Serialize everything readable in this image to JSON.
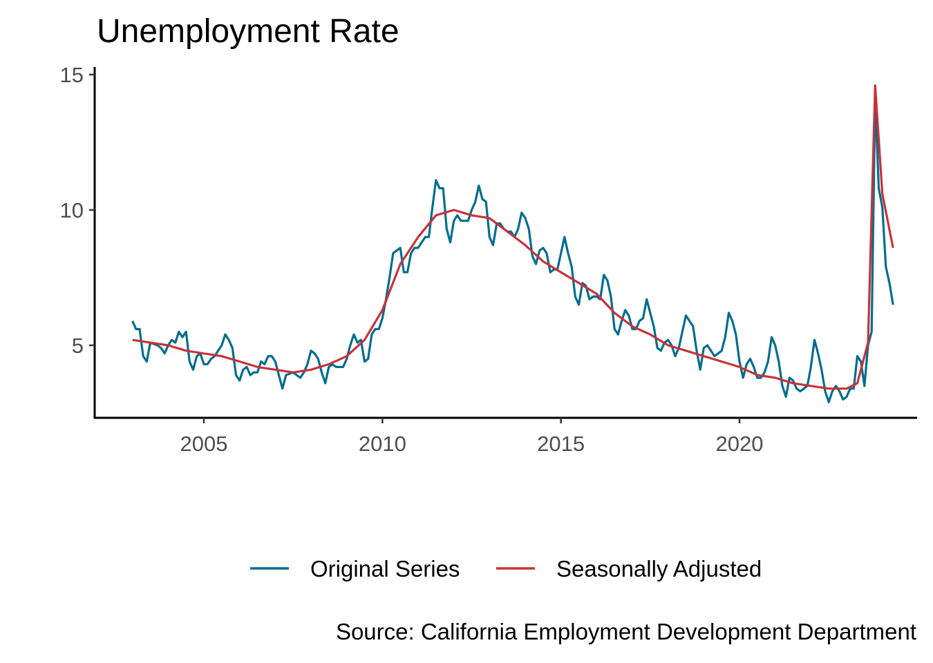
{
  "chart_data": {
    "type": "line",
    "title": "Unemployment Rate",
    "caption": "Source: California Employment Development Department",
    "xlabel": "",
    "ylabel": "",
    "xlim": [
      2002.0,
      2024.3
    ],
    "ylim": [
      2.5,
      15.2
    ],
    "x_ticks": [
      2005,
      2010,
      2015,
      2020
    ],
    "x_tick_labels": [
      "2005",
      "2010",
      "2015",
      "2020"
    ],
    "y_ticks": [
      5,
      10,
      15
    ],
    "y_tick_labels": [
      "5",
      "10",
      "15"
    ],
    "grid": false,
    "legend_position": "bottom",
    "series": [
      {
        "name": "Original Series",
        "color": "#006d8f",
        "points": [
          [
            2003.0,
            5.9
          ],
          [
            2003.1,
            5.6
          ],
          [
            2003.2,
            5.6
          ],
          [
            2003.3,
            4.6
          ],
          [
            2003.4,
            4.4
          ],
          [
            2003.5,
            5.1
          ],
          [
            2003.7,
            5.0
          ],
          [
            2003.8,
            4.9
          ],
          [
            2003.9,
            4.7
          ],
          [
            2004.0,
            5.0
          ],
          [
            2004.1,
            5.2
          ],
          [
            2004.2,
            5.1
          ],
          [
            2004.3,
            5.5
          ],
          [
            2004.4,
            5.3
          ],
          [
            2004.5,
            5.5
          ],
          [
            2004.6,
            4.4
          ],
          [
            2004.7,
            4.1
          ],
          [
            2004.8,
            4.6
          ],
          [
            2004.9,
            4.7
          ],
          [
            2005.0,
            4.3
          ],
          [
            2005.1,
            4.3
          ],
          [
            2005.2,
            4.5
          ],
          [
            2005.3,
            4.6
          ],
          [
            2005.5,
            5.0
          ],
          [
            2005.6,
            5.4
          ],
          [
            2005.7,
            5.2
          ],
          [
            2005.8,
            4.9
          ],
          [
            2005.9,
            3.9
          ],
          [
            2006.0,
            3.7
          ],
          [
            2006.1,
            4.1
          ],
          [
            2006.2,
            4.2
          ],
          [
            2006.3,
            3.9
          ],
          [
            2006.4,
            4.0
          ],
          [
            2006.5,
            4.0
          ],
          [
            2006.6,
            4.4
          ],
          [
            2006.7,
            4.3
          ],
          [
            2006.8,
            4.6
          ],
          [
            2006.9,
            4.6
          ],
          [
            2007.0,
            4.4
          ],
          [
            2007.1,
            3.9
          ],
          [
            2007.2,
            3.4
          ],
          [
            2007.3,
            3.9
          ],
          [
            2007.5,
            4.0
          ],
          [
            2007.6,
            3.9
          ],
          [
            2007.7,
            3.8
          ],
          [
            2007.8,
            4.0
          ],
          [
            2007.9,
            4.3
          ],
          [
            2008.0,
            4.8
          ],
          [
            2008.1,
            4.7
          ],
          [
            2008.2,
            4.5
          ],
          [
            2008.3,
            4.0
          ],
          [
            2008.4,
            3.6
          ],
          [
            2008.5,
            4.2
          ],
          [
            2008.6,
            4.3
          ],
          [
            2008.7,
            4.2
          ],
          [
            2008.8,
            4.2
          ],
          [
            2008.9,
            4.2
          ],
          [
            2009.0,
            4.5
          ],
          [
            2009.1,
            5.0
          ],
          [
            2009.2,
            5.4
          ],
          [
            2009.3,
            5.1
          ],
          [
            2009.4,
            5.2
          ],
          [
            2009.5,
            4.4
          ],
          [
            2009.6,
            4.5
          ],
          [
            2009.7,
            5.4
          ],
          [
            2009.8,
            5.6
          ],
          [
            2009.9,
            5.6
          ],
          [
            2010.0,
            6.0
          ],
          [
            2010.1,
            6.7
          ],
          [
            2010.2,
            7.5
          ],
          [
            2010.3,
            8.4
          ],
          [
            2010.4,
            8.5
          ],
          [
            2010.5,
            8.6
          ],
          [
            2010.6,
            7.7
          ],
          [
            2010.7,
            7.7
          ],
          [
            2010.8,
            8.4
          ],
          [
            2010.9,
            8.6
          ],
          [
            2011.0,
            8.6
          ],
          [
            2011.1,
            8.8
          ],
          [
            2011.2,
            9.0
          ],
          [
            2011.3,
            9.0
          ],
          [
            2011.4,
            10.1
          ],
          [
            2011.5,
            11.1
          ],
          [
            2011.6,
            10.8
          ],
          [
            2011.7,
            10.8
          ],
          [
            2011.8,
            9.3
          ],
          [
            2011.9,
            8.8
          ],
          [
            2012.0,
            9.6
          ],
          [
            2012.1,
            9.8
          ],
          [
            2012.2,
            9.6
          ],
          [
            2012.3,
            9.6
          ],
          [
            2012.4,
            9.6
          ],
          [
            2012.5,
            10.0
          ],
          [
            2012.6,
            10.3
          ],
          [
            2012.7,
            10.9
          ],
          [
            2012.8,
            10.4
          ],
          [
            2012.9,
            10.3
          ],
          [
            2013.0,
            9.0
          ],
          [
            2013.1,
            8.7
          ],
          [
            2013.2,
            9.5
          ],
          [
            2013.3,
            9.5
          ],
          [
            2013.4,
            9.3
          ],
          [
            2013.5,
            9.2
          ],
          [
            2013.6,
            9.2
          ],
          [
            2013.7,
            9.0
          ],
          [
            2013.8,
            9.3
          ],
          [
            2013.9,
            9.9
          ],
          [
            2014.0,
            9.7
          ],
          [
            2014.1,
            9.3
          ],
          [
            2014.2,
            8.3
          ],
          [
            2014.3,
            8.0
          ],
          [
            2014.4,
            8.5
          ],
          [
            2014.5,
            8.6
          ],
          [
            2014.6,
            8.4
          ],
          [
            2014.7,
            7.7
          ],
          [
            2014.8,
            7.8
          ],
          [
            2014.9,
            7.8
          ],
          [
            2015.0,
            8.4
          ],
          [
            2015.1,
            9.0
          ],
          [
            2015.2,
            8.4
          ],
          [
            2015.3,
            7.9
          ],
          [
            2015.4,
            6.8
          ],
          [
            2015.5,
            6.5
          ],
          [
            2015.6,
            7.3
          ],
          [
            2015.7,
            7.2
          ],
          [
            2015.8,
            6.7
          ],
          [
            2015.9,
            6.8
          ],
          [
            2016.0,
            6.8
          ],
          [
            2016.1,
            6.7
          ],
          [
            2016.2,
            7.6
          ],
          [
            2016.3,
            7.4
          ],
          [
            2016.4,
            6.8
          ],
          [
            2016.5,
            5.6
          ],
          [
            2016.6,
            5.4
          ],
          [
            2016.7,
            5.9
          ],
          [
            2016.8,
            6.3
          ],
          [
            2016.9,
            6.1
          ],
          [
            2017.0,
            5.6
          ],
          [
            2017.1,
            5.6
          ],
          [
            2017.2,
            5.9
          ],
          [
            2017.3,
            6.0
          ],
          [
            2017.4,
            6.7
          ],
          [
            2017.5,
            6.2
          ],
          [
            2017.6,
            5.7
          ],
          [
            2017.7,
            4.9
          ],
          [
            2017.8,
            4.8
          ],
          [
            2017.9,
            5.1
          ],
          [
            2018.0,
            5.2
          ],
          [
            2018.1,
            5.0
          ],
          [
            2018.2,
            4.6
          ],
          [
            2018.3,
            4.9
          ],
          [
            2018.4,
            5.5
          ],
          [
            2018.5,
            6.1
          ],
          [
            2018.6,
            5.9
          ],
          [
            2018.7,
            5.7
          ],
          [
            2018.8,
            4.8
          ],
          [
            2018.9,
            4.1
          ],
          [
            2019.0,
            4.9
          ],
          [
            2019.1,
            5.0
          ],
          [
            2019.2,
            4.8
          ],
          [
            2019.3,
            4.6
          ],
          [
            2019.4,
            4.7
          ],
          [
            2019.5,
            4.8
          ],
          [
            2019.6,
            5.3
          ],
          [
            2019.7,
            6.2
          ],
          [
            2019.8,
            5.9
          ],
          [
            2019.9,
            5.4
          ],
          [
            2020.0,
            4.4
          ],
          [
            2020.1,
            3.8
          ],
          [
            2020.2,
            4.3
          ],
          [
            2020.3,
            4.5
          ],
          [
            2020.4,
            4.2
          ],
          [
            2020.5,
            3.8
          ],
          [
            2020.6,
            3.8
          ],
          [
            2020.7,
            4.0
          ],
          [
            2020.8,
            4.4
          ],
          [
            2020.9,
            5.3
          ],
          [
            2021.0,
            5.0
          ],
          [
            2021.1,
            4.4
          ],
          [
            2021.2,
            3.5
          ],
          [
            2021.3,
            3.1
          ],
          [
            2021.4,
            3.8
          ],
          [
            2021.5,
            3.7
          ],
          [
            2021.6,
            3.4
          ],
          [
            2021.7,
            3.3
          ],
          [
            2021.8,
            3.4
          ],
          [
            2021.9,
            3.5
          ],
          [
            2022.0,
            4.2
          ],
          [
            2022.1,
            5.2
          ],
          [
            2022.2,
            4.7
          ],
          [
            2022.3,
            4.1
          ],
          [
            2022.4,
            3.3
          ],
          [
            2022.5,
            2.9
          ],
          [
            2022.6,
            3.3
          ],
          [
            2022.7,
            3.5
          ],
          [
            2022.8,
            3.3
          ],
          [
            2022.9,
            3.0
          ],
          [
            2023.0,
            3.1
          ],
          [
            2023.1,
            3.4
          ],
          [
            2023.2,
            3.4
          ],
          [
            2023.3,
            4.6
          ],
          [
            2023.4,
            4.4
          ],
          [
            2023.5,
            3.5
          ],
          [
            2023.6,
            5.0
          ],
          [
            2023.7,
            5.5
          ],
          [
            2023.8,
            14.2
          ],
          [
            2023.9,
            10.8
          ],
          [
            2024.0,
            10.1
          ],
          [
            2024.1,
            7.9
          ],
          [
            2024.2,
            7.3
          ],
          [
            2024.3,
            6.5
          ]
        ]
      },
      {
        "name": "Seasonally Adjusted",
        "color": "#c8323a",
        "points": [
          [
            2003.0,
            5.2
          ],
          [
            2003.5,
            5.1
          ],
          [
            2004.0,
            5.0
          ],
          [
            2004.5,
            4.8
          ],
          [
            2005.0,
            4.7
          ],
          [
            2005.5,
            4.6
          ],
          [
            2006.0,
            4.4
          ],
          [
            2006.5,
            4.2
          ],
          [
            2007.0,
            4.1
          ],
          [
            2007.5,
            4.0
          ],
          [
            2008.0,
            4.1
          ],
          [
            2008.5,
            4.3
          ],
          [
            2009.0,
            4.6
          ],
          [
            2009.5,
            5.2
          ],
          [
            2010.0,
            6.3
          ],
          [
            2010.5,
            8.0
          ],
          [
            2011.0,
            9.0
          ],
          [
            2011.5,
            9.8
          ],
          [
            2012.0,
            10.0
          ],
          [
            2012.5,
            9.8
          ],
          [
            2013.0,
            9.7
          ],
          [
            2013.5,
            9.2
          ],
          [
            2014.0,
            8.7
          ],
          [
            2014.5,
            8.1
          ],
          [
            2015.0,
            7.7
          ],
          [
            2015.5,
            7.3
          ],
          [
            2016.0,
            6.9
          ],
          [
            2016.5,
            6.2
          ],
          [
            2017.0,
            5.7
          ],
          [
            2017.5,
            5.4
          ],
          [
            2018.0,
            5.0
          ],
          [
            2018.5,
            4.8
          ],
          [
            2019.0,
            4.6
          ],
          [
            2019.5,
            4.4
          ],
          [
            2020.0,
            4.2
          ],
          [
            2020.5,
            3.9
          ],
          [
            2021.0,
            3.8
          ],
          [
            2021.5,
            3.6
          ],
          [
            2022.0,
            3.5
          ],
          [
            2022.5,
            3.4
          ],
          [
            2023.0,
            3.4
          ],
          [
            2023.3,
            3.6
          ],
          [
            2023.6,
            5.1
          ],
          [
            2023.8,
            14.6
          ],
          [
            2024.0,
            10.6
          ],
          [
            2024.3,
            8.6
          ]
        ]
      }
    ]
  }
}
